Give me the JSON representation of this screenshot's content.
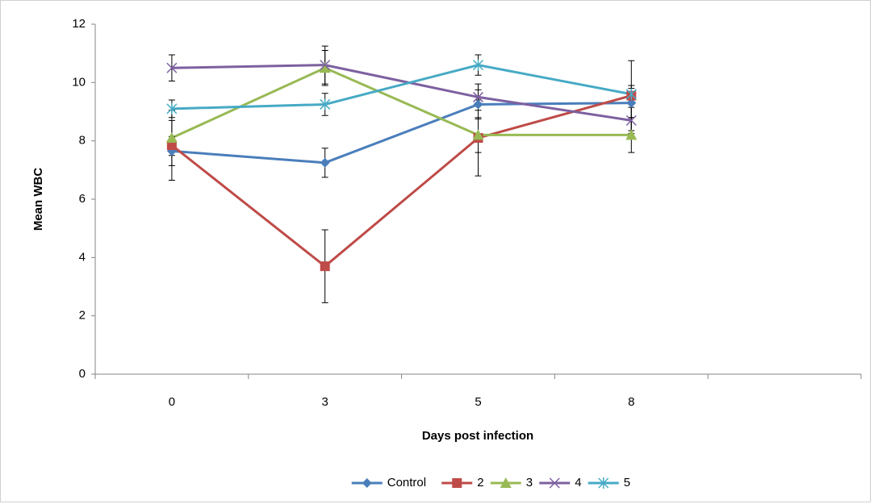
{
  "chart_data": {
    "type": "line",
    "x_label": "Days post infection",
    "y_label": "Mean WBC",
    "categories": [
      "0",
      "3",
      "5",
      "8",
      null
    ],
    "series": [
      {
        "name": "Control",
        "color": "#4a7ebb",
        "marker": "diamond",
        "values": [
          7.65,
          7.25,
          9.25,
          9.3,
          null
        ],
        "errors": [
          0.5,
          0.5,
          0.5,
          0.5,
          null
        ]
      },
      {
        "name": "2",
        "color": "#be4b48",
        "marker": "square",
        "values": [
          7.85,
          3.7,
          8.1,
          9.55,
          null
        ],
        "errors": [
          1.2,
          1.25,
          1.3,
          1.2,
          null
        ]
      },
      {
        "name": "3",
        "color": "#98b954",
        "marker": "triangle",
        "values": [
          8.1,
          10.5,
          8.2,
          8.2,
          null
        ],
        "errors": [
          0.6,
          0.6,
          0.6,
          0.6,
          null
        ]
      },
      {
        "name": "4",
        "color": "#7d60a0",
        "marker": "x",
        "values": [
          10.5,
          10.6,
          9.5,
          8.7,
          null
        ],
        "errors": [
          0.45,
          0.65,
          0.45,
          0.45,
          null
        ]
      },
      {
        "name": "5",
        "color": "#46aac5",
        "marker": "star",
        "values": [
          9.1,
          9.25,
          10.6,
          9.6,
          null
        ],
        "errors": [
          0.3,
          0.38,
          0.35,
          0.3,
          null
        ]
      }
    ],
    "ylim": [
      0,
      12
    ],
    "yticks": [
      0,
      2,
      4,
      6,
      8,
      10,
      12
    ],
    "grid": false,
    "legend": "bottom"
  }
}
